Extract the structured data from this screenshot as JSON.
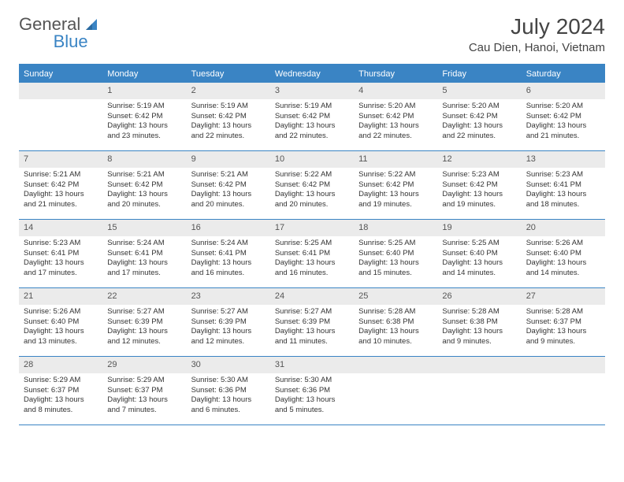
{
  "logo": {
    "text1": "General",
    "text2": "Blue"
  },
  "title": "July 2024",
  "location": "Cau Dien, Hanoi, Vietnam",
  "colors": {
    "brand": "#3a84c4",
    "header_bg": "#3a84c4",
    "header_text": "#ffffff",
    "daynum_bg": "#ebebeb",
    "text": "#333333",
    "border": "#3a84c4"
  },
  "day_headers": [
    "Sunday",
    "Monday",
    "Tuesday",
    "Wednesday",
    "Thursday",
    "Friday",
    "Saturday"
  ],
  "weeks": [
    [
      {
        "num": "",
        "sunrise": "",
        "sunset": "",
        "daylight1": "",
        "daylight2": ""
      },
      {
        "num": "1",
        "sunrise": "Sunrise: 5:19 AM",
        "sunset": "Sunset: 6:42 PM",
        "daylight1": "Daylight: 13 hours",
        "daylight2": "and 23 minutes."
      },
      {
        "num": "2",
        "sunrise": "Sunrise: 5:19 AM",
        "sunset": "Sunset: 6:42 PM",
        "daylight1": "Daylight: 13 hours",
        "daylight2": "and 22 minutes."
      },
      {
        "num": "3",
        "sunrise": "Sunrise: 5:19 AM",
        "sunset": "Sunset: 6:42 PM",
        "daylight1": "Daylight: 13 hours",
        "daylight2": "and 22 minutes."
      },
      {
        "num": "4",
        "sunrise": "Sunrise: 5:20 AM",
        "sunset": "Sunset: 6:42 PM",
        "daylight1": "Daylight: 13 hours",
        "daylight2": "and 22 minutes."
      },
      {
        "num": "5",
        "sunrise": "Sunrise: 5:20 AM",
        "sunset": "Sunset: 6:42 PM",
        "daylight1": "Daylight: 13 hours",
        "daylight2": "and 22 minutes."
      },
      {
        "num": "6",
        "sunrise": "Sunrise: 5:20 AM",
        "sunset": "Sunset: 6:42 PM",
        "daylight1": "Daylight: 13 hours",
        "daylight2": "and 21 minutes."
      }
    ],
    [
      {
        "num": "7",
        "sunrise": "Sunrise: 5:21 AM",
        "sunset": "Sunset: 6:42 PM",
        "daylight1": "Daylight: 13 hours",
        "daylight2": "and 21 minutes."
      },
      {
        "num": "8",
        "sunrise": "Sunrise: 5:21 AM",
        "sunset": "Sunset: 6:42 PM",
        "daylight1": "Daylight: 13 hours",
        "daylight2": "and 20 minutes."
      },
      {
        "num": "9",
        "sunrise": "Sunrise: 5:21 AM",
        "sunset": "Sunset: 6:42 PM",
        "daylight1": "Daylight: 13 hours",
        "daylight2": "and 20 minutes."
      },
      {
        "num": "10",
        "sunrise": "Sunrise: 5:22 AM",
        "sunset": "Sunset: 6:42 PM",
        "daylight1": "Daylight: 13 hours",
        "daylight2": "and 20 minutes."
      },
      {
        "num": "11",
        "sunrise": "Sunrise: 5:22 AM",
        "sunset": "Sunset: 6:42 PM",
        "daylight1": "Daylight: 13 hours",
        "daylight2": "and 19 minutes."
      },
      {
        "num": "12",
        "sunrise": "Sunrise: 5:23 AM",
        "sunset": "Sunset: 6:42 PM",
        "daylight1": "Daylight: 13 hours",
        "daylight2": "and 19 minutes."
      },
      {
        "num": "13",
        "sunrise": "Sunrise: 5:23 AM",
        "sunset": "Sunset: 6:41 PM",
        "daylight1": "Daylight: 13 hours",
        "daylight2": "and 18 minutes."
      }
    ],
    [
      {
        "num": "14",
        "sunrise": "Sunrise: 5:23 AM",
        "sunset": "Sunset: 6:41 PM",
        "daylight1": "Daylight: 13 hours",
        "daylight2": "and 17 minutes."
      },
      {
        "num": "15",
        "sunrise": "Sunrise: 5:24 AM",
        "sunset": "Sunset: 6:41 PM",
        "daylight1": "Daylight: 13 hours",
        "daylight2": "and 17 minutes."
      },
      {
        "num": "16",
        "sunrise": "Sunrise: 5:24 AM",
        "sunset": "Sunset: 6:41 PM",
        "daylight1": "Daylight: 13 hours",
        "daylight2": "and 16 minutes."
      },
      {
        "num": "17",
        "sunrise": "Sunrise: 5:25 AM",
        "sunset": "Sunset: 6:41 PM",
        "daylight1": "Daylight: 13 hours",
        "daylight2": "and 16 minutes."
      },
      {
        "num": "18",
        "sunrise": "Sunrise: 5:25 AM",
        "sunset": "Sunset: 6:40 PM",
        "daylight1": "Daylight: 13 hours",
        "daylight2": "and 15 minutes."
      },
      {
        "num": "19",
        "sunrise": "Sunrise: 5:25 AM",
        "sunset": "Sunset: 6:40 PM",
        "daylight1": "Daylight: 13 hours",
        "daylight2": "and 14 minutes."
      },
      {
        "num": "20",
        "sunrise": "Sunrise: 5:26 AM",
        "sunset": "Sunset: 6:40 PM",
        "daylight1": "Daylight: 13 hours",
        "daylight2": "and 14 minutes."
      }
    ],
    [
      {
        "num": "21",
        "sunrise": "Sunrise: 5:26 AM",
        "sunset": "Sunset: 6:40 PM",
        "daylight1": "Daylight: 13 hours",
        "daylight2": "and 13 minutes."
      },
      {
        "num": "22",
        "sunrise": "Sunrise: 5:27 AM",
        "sunset": "Sunset: 6:39 PM",
        "daylight1": "Daylight: 13 hours",
        "daylight2": "and 12 minutes."
      },
      {
        "num": "23",
        "sunrise": "Sunrise: 5:27 AM",
        "sunset": "Sunset: 6:39 PM",
        "daylight1": "Daylight: 13 hours",
        "daylight2": "and 12 minutes."
      },
      {
        "num": "24",
        "sunrise": "Sunrise: 5:27 AM",
        "sunset": "Sunset: 6:39 PM",
        "daylight1": "Daylight: 13 hours",
        "daylight2": "and 11 minutes."
      },
      {
        "num": "25",
        "sunrise": "Sunrise: 5:28 AM",
        "sunset": "Sunset: 6:38 PM",
        "daylight1": "Daylight: 13 hours",
        "daylight2": "and 10 minutes."
      },
      {
        "num": "26",
        "sunrise": "Sunrise: 5:28 AM",
        "sunset": "Sunset: 6:38 PM",
        "daylight1": "Daylight: 13 hours",
        "daylight2": "and 9 minutes."
      },
      {
        "num": "27",
        "sunrise": "Sunrise: 5:28 AM",
        "sunset": "Sunset: 6:37 PM",
        "daylight1": "Daylight: 13 hours",
        "daylight2": "and 9 minutes."
      }
    ],
    [
      {
        "num": "28",
        "sunrise": "Sunrise: 5:29 AM",
        "sunset": "Sunset: 6:37 PM",
        "daylight1": "Daylight: 13 hours",
        "daylight2": "and 8 minutes."
      },
      {
        "num": "29",
        "sunrise": "Sunrise: 5:29 AM",
        "sunset": "Sunset: 6:37 PM",
        "daylight1": "Daylight: 13 hours",
        "daylight2": "and 7 minutes."
      },
      {
        "num": "30",
        "sunrise": "Sunrise: 5:30 AM",
        "sunset": "Sunset: 6:36 PM",
        "daylight1": "Daylight: 13 hours",
        "daylight2": "and 6 minutes."
      },
      {
        "num": "31",
        "sunrise": "Sunrise: 5:30 AM",
        "sunset": "Sunset: 6:36 PM",
        "daylight1": "Daylight: 13 hours",
        "daylight2": "and 5 minutes."
      },
      {
        "num": "",
        "sunrise": "",
        "sunset": "",
        "daylight1": "",
        "daylight2": ""
      },
      {
        "num": "",
        "sunrise": "",
        "sunset": "",
        "daylight1": "",
        "daylight2": ""
      },
      {
        "num": "",
        "sunrise": "",
        "sunset": "",
        "daylight1": "",
        "daylight2": ""
      }
    ]
  ]
}
